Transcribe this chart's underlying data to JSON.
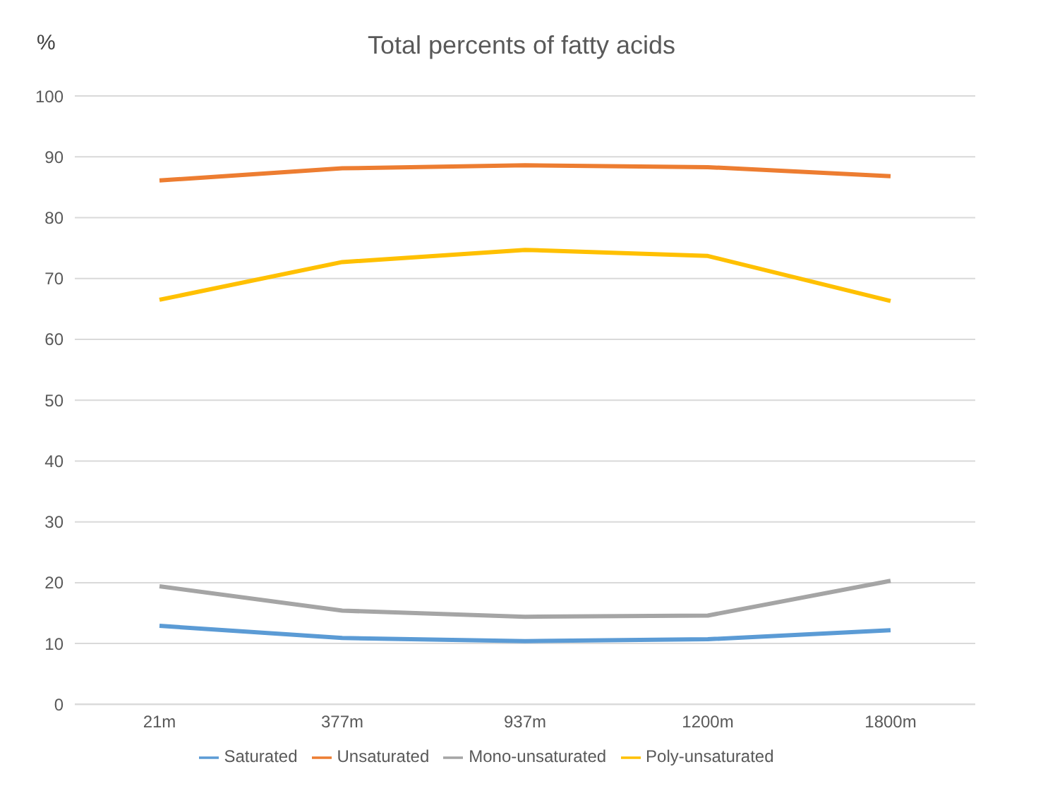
{
  "chart_data": {
    "type": "line",
    "title": "Total percents of fatty acids",
    "ylabel": "%",
    "categories": [
      "21m",
      "377m",
      "937m",
      "1200m",
      "1800m"
    ],
    "series": [
      {
        "name": "Saturated",
        "color": "#5b9bd5",
        "values": [
          12.9,
          10.9,
          10.4,
          10.7,
          12.2
        ]
      },
      {
        "name": "Unsaturated",
        "color": "#ed7d31",
        "values": [
          86.1,
          88.1,
          88.6,
          88.3,
          86.8
        ]
      },
      {
        "name": "Mono-unsaturated",
        "color": "#a5a5a5",
        "values": [
          19.4,
          15.4,
          14.4,
          14.6,
          20.3
        ]
      },
      {
        "name": "Poly-unsaturated",
        "color": "#ffc000",
        "values": [
          66.5,
          72.7,
          74.7,
          73.7,
          66.3
        ]
      }
    ],
    "ylim": [
      0,
      100
    ],
    "yticks": [
      0,
      10,
      20,
      30,
      40,
      50,
      60,
      70,
      80,
      90,
      100
    ],
    "grid": "y",
    "legend": "bottom",
    "marker": "none",
    "line_style": "solid"
  }
}
